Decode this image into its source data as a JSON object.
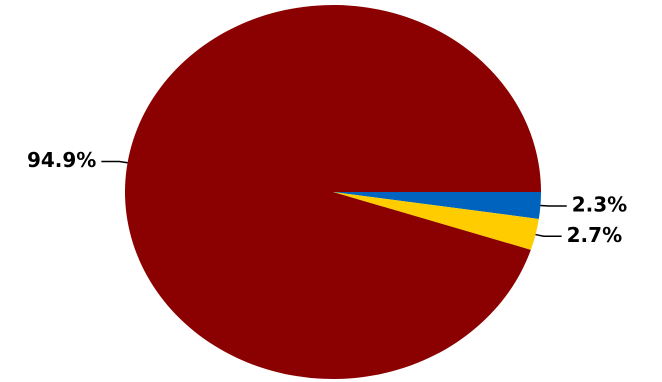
{
  "chart_data": {
    "type": "pie",
    "values": [
      2.3,
      2.7,
      94.9
    ],
    "value_labels": [
      "2.3%",
      "2.7%",
      "94.9%"
    ],
    "colors": [
      "#0063be",
      "#ffcc00",
      "#8b0000"
    ]
  }
}
